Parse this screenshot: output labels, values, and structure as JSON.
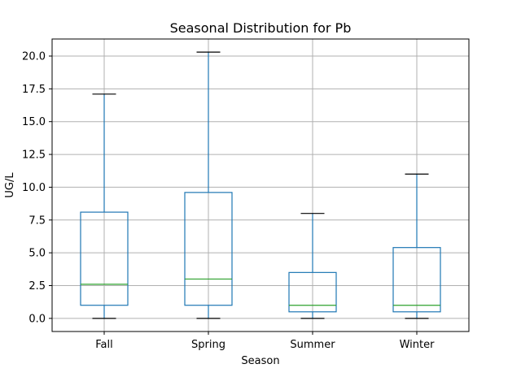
{
  "chart_data": {
    "type": "box",
    "title": "Seasonal Distribution for Pb",
    "xlabel": "Season",
    "ylabel": "UG/L",
    "ylim": [
      -1.0,
      21.3
    ],
    "yticks": [
      "0.0",
      "2.5",
      "5.0",
      "7.5",
      "10.0",
      "12.5",
      "15.0",
      "17.5",
      "20.0"
    ],
    "grid": true,
    "categories": [
      "Fall",
      "Spring",
      "Summer",
      "Winter"
    ],
    "boxes": [
      {
        "category": "Fall",
        "whisker_low": 0.0,
        "q1": 1.0,
        "median": 2.6,
        "q3": 8.1,
        "whisker_high": 17.1
      },
      {
        "category": "Spring",
        "whisker_low": 0.0,
        "q1": 1.0,
        "median": 3.0,
        "q3": 9.6,
        "whisker_high": 20.3
      },
      {
        "category": "Summer",
        "whisker_low": 0.0,
        "q1": 0.5,
        "median": 1.0,
        "q3": 3.5,
        "whisker_high": 8.0
      },
      {
        "category": "Winter",
        "whisker_low": 0.0,
        "q1": 0.5,
        "median": 1.0,
        "q3": 5.4,
        "whisker_high": 11.0
      }
    ],
    "colors": {
      "box": "#1f77b4",
      "median": "#2ca02c",
      "cap": "#000000",
      "grid": "#b0b0b0"
    }
  }
}
